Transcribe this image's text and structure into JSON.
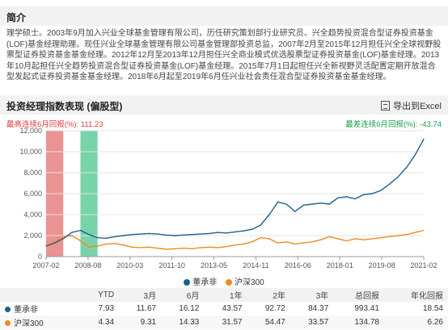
{
  "intro": {
    "title": "简介",
    "text": "理学硕士。2003年9月加入兴业全球基金管理有限公司，历任研究策划部行业研究员、兴全趋势投资混合型证券投资基金(LOF)基金经理助理。现任兴业全球基金管理有限公司基金管理部投资总监，2007年2月至2015年12月担任兴全全球视野股票型证券投资基金基金经理。2012年12月至2013年12月担任兴全商业模式优选股票型证券投资基金(LOF)基金经理。2013年10月起担任兴全趋势投资混合型证券投资基金(LOF)基金经理。2015年7月1日起担任兴全新视野灵活配置定期开放混合型发起式证券投资基金基金经理。2018年6月起至2019年6月任兴业社会责任混合型证券投资基金基金经理。"
  },
  "performance": {
    "title": "投资经理指数表现 (偏股型)",
    "export_label": "导出到Excel",
    "export_icon": "excel-export-icon",
    "max_up_label": "最高连续6月回报(%): ",
    "max_up_value": "111.23",
    "max_down_label": "最差连续6月回报(%): ",
    "max_down_value": "-43.74",
    "colors": {
      "manager": "#1f5f8b",
      "index": "#f0891e",
      "up_band": "#e46e6e",
      "down_band": "#4cc48c"
    }
  },
  "chart_data": {
    "type": "line",
    "x_ticks": [
      "2007-02",
      "2008-08",
      "2010-03",
      "2011-10",
      "2013-05",
      "2014-11",
      "2016-06",
      "2018-01",
      "2019-08",
      "2021-02"
    ],
    "ylim": [
      0,
      12000
    ],
    "y_ticks": [
      "0",
      "2,000",
      "4,000",
      "6,000",
      "8,000",
      "10,000",
      "12,000"
    ],
    "grid": true,
    "legend_position": "bottom",
    "series": [
      {
        "name": "董承非",
        "color": "#1f5f8b",
        "values": [
          1000,
          1300,
          1700,
          2300,
          2500,
          2100,
          1800,
          1750,
          1900,
          2000,
          2100,
          2150,
          2200,
          2150,
          2050,
          2000,
          2050,
          2100,
          2150,
          2200,
          2300,
          2250,
          2350,
          2450,
          2600,
          3000,
          4000,
          5200,
          5000,
          4300,
          4900,
          5000,
          5100,
          5000,
          5600,
          5700,
          5500,
          5900,
          6000,
          6300,
          6900,
          7600,
          8500,
          9700,
          11200
        ]
      },
      {
        "name": "沪深300",
        "color": "#f0891e",
        "values": [
          1000,
          1400,
          1900,
          2000,
          1500,
          900,
          1000,
          1200,
          1250,
          1100,
          900,
          850,
          900,
          800,
          700,
          750,
          800,
          750,
          850,
          900,
          850,
          950,
          1100,
          1200,
          1400,
          1800,
          1700,
          1300,
          1400,
          1200,
          1300,
          1400,
          1600,
          1900,
          1700,
          1500,
          1700,
          1600,
          1700,
          1800,
          1900,
          2000,
          2100,
          2300,
          2500
        ]
      }
    ],
    "highlight_bands": [
      {
        "label": "最高连续6月回报",
        "from_index": 0,
        "to_index": 2
      },
      {
        "label": "最差连续6月回报",
        "from_index": 4,
        "to_index": 6
      }
    ]
  },
  "legend": [
    {
      "name": "董承非",
      "color": "#1f5f8b"
    },
    {
      "name": "沪深300",
      "color": "#f0891e"
    }
  ],
  "table": {
    "headers": [
      "",
      "YTD",
      "3月",
      "6月",
      "1年",
      "2年",
      "3年",
      "总回报",
      "年化回报"
    ],
    "rows": [
      {
        "name": "董承非",
        "color": "#1f5f8b",
        "values": [
          "7.93",
          "11.67",
          "16.12",
          "43.57",
          "92.72",
          "84.37",
          "993.41",
          "18.54"
        ]
      },
      {
        "name": "沪深300",
        "color": "#f0891e",
        "values": [
          "4.34",
          "9.31",
          "14.33",
          "31.57",
          "54.47",
          "33.57",
          "134.78",
          "6.26"
        ]
      }
    ]
  }
}
